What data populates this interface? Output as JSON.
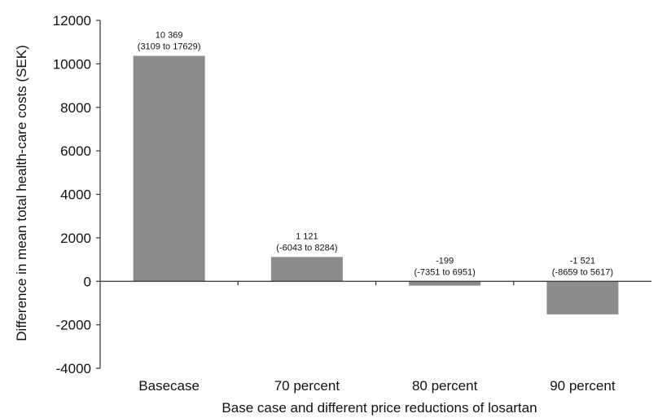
{
  "chart_data": {
    "type": "bar",
    "title": "",
    "xlabel": "Base case and different price reductions of losartan",
    "ylabel": "Difference in mean total health-care costs (SEK)",
    "categories": [
      "Basecase",
      "70 percent",
      "80 percent",
      "90 percent"
    ],
    "values": [
      10369,
      1121,
      -199,
      -1521
    ],
    "data_labels": [
      {
        "value": "10 369",
        "interval": "(3109 to 17629)"
      },
      {
        "value": "1 121",
        "interval": "(-6043 to 8284)"
      },
      {
        "value": "-199",
        "interval": "(-7351 to 6951)"
      },
      {
        "value": "-1 521",
        "interval": "(-8659 to 5617)"
      }
    ],
    "yticks": [
      -4000,
      -2000,
      0,
      2000,
      4000,
      6000,
      8000,
      10000,
      12000
    ],
    "ylim": [
      -4000,
      12000
    ],
    "grid": false,
    "bar_color": "#8c8c8c"
  }
}
